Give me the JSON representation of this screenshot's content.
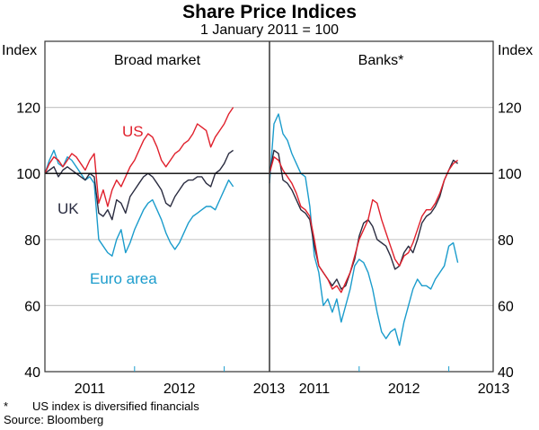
{
  "chart_data": {
    "type": "line",
    "title": "Share Price Indices",
    "subtitle": "1 January 2011 = 100",
    "ylabel_left": "Index",
    "ylabel_right": "Index",
    "ylim": [
      40,
      140
    ],
    "yticks": [
      40,
      60,
      80,
      100,
      120
    ],
    "xlim": [
      2011.0,
      2013.5
    ],
    "xtick_labels": [
      "2011",
      "2012",
      "2013"
    ],
    "reference_line": 100,
    "colors": {
      "US": "#e0202c",
      "UK": "#2a2c40",
      "Euro area": "#1b9ccc",
      "grid": "#c8c8c8"
    },
    "x_start": 2011.0,
    "x_step": 0.05,
    "panels": [
      {
        "title": "Broad market",
        "labels": {
          "US": "US",
          "UK": "UK",
          "Euro area": "Euro area"
        },
        "series": [
          {
            "name": "US",
            "values": [
              100,
              103,
              105,
              104,
              102,
              104,
              106,
              105,
              103,
              101,
              104,
              106,
              91,
              95,
              90,
              95,
              98,
              96,
              99,
              102,
              104,
              107,
              110,
              112,
              111,
              108,
              104,
              102,
              104,
              106,
              107,
              109,
              110,
              112,
              115,
              114,
              113,
              108,
              111,
              113,
              115,
              118,
              120
            ]
          },
          {
            "name": "UK",
            "values": [
              100,
              101,
              102,
              99,
              101,
              102,
              101,
              100,
              99,
              98,
              100,
              99,
              88,
              87,
              89,
              86,
              92,
              91,
              88,
              93,
              95,
              97,
              99,
              100,
              99,
              97,
              95,
              91,
              90,
              93,
              95,
              97,
              98,
              98,
              99,
              99,
              97,
              96,
              100,
              101,
              103,
              106,
              107
            ]
          },
          {
            "name": "Euro area",
            "values": [
              100,
              104,
              107,
              103,
              102,
              105,
              104,
              102,
              100,
              98,
              99,
              97,
              80,
              78,
              76,
              75,
              80,
              83,
              76,
              79,
              83,
              86,
              89,
              91,
              92,
              89,
              86,
              82,
              79,
              77,
              79,
              82,
              85,
              87,
              88,
              89,
              90,
              90,
              89,
              92,
              95,
              98,
              96
            ]
          }
        ]
      },
      {
        "title": "Banks*",
        "series": [
          {
            "name": "US",
            "values": [
              100,
              105,
              104,
              101,
              99,
              97,
              94,
              90,
              89,
              87,
              80,
              72,
              70,
              68,
              65,
              66,
              64,
              67,
              70,
              75,
              80,
              83,
              86,
              92,
              91,
              86,
              82,
              78,
              74,
              72,
              75,
              76,
              79,
              83,
              87,
              89,
              89,
              91,
              94,
              98,
              101,
              103,
              104
            ]
          },
          {
            "name": "UK",
            "values": [
              100,
              107,
              106,
              98,
              97,
              95,
              92,
              89,
              88,
              86,
              78,
              72,
              70,
              68,
              66,
              68,
              65,
              66,
              70,
              74,
              81,
              85,
              86,
              84,
              80,
              79,
              78,
              75,
              71,
              72,
              76,
              78,
              76,
              80,
              85,
              87,
              88,
              90,
              93,
              98,
              101,
              104,
              103
            ]
          },
          {
            "name": "Euro area",
            "values": [
              97,
              115,
              118,
              112,
              110,
              106,
              103,
              100,
              99,
              90,
              75,
              70,
              60,
              62,
              58,
              62,
              55,
              60,
              65,
              72,
              74,
              73,
              70,
              65,
              58,
              52,
              50,
              52,
              53,
              48,
              55,
              60,
              65,
              68,
              66,
              66,
              65,
              68,
              70,
              72,
              78,
              79,
              73
            ]
          }
        ]
      }
    ],
    "footnote": "US index is diversified financials",
    "footnote_marker": "*",
    "source": "Source: Bloomberg"
  }
}
